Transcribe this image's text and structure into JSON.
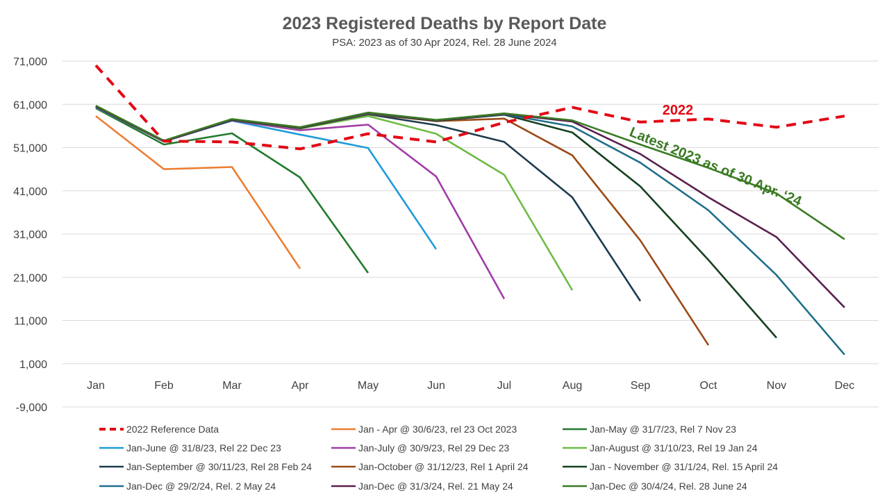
{
  "chart_data": {
    "type": "line",
    "title": "2023 Registered Deaths by Report Date",
    "subtitle": "PSA: 2023 as of 30 Apr 2024, Rel. 28 June 2024",
    "xlabel": "",
    "ylabel": "",
    "categories": [
      "Jan",
      "Feb",
      "Mar",
      "Apr",
      "May",
      "Jun",
      "Jul",
      "Aug",
      "Sep",
      "Oct",
      "Nov",
      "Dec"
    ],
    "ylim": [
      -9000,
      71000
    ],
    "yticks": [
      71000,
      61000,
      51000,
      41000,
      31000,
      21000,
      11000,
      1000,
      -9000
    ],
    "ytick_labels": [
      "71,000",
      "61,000",
      "51,000",
      "41,000",
      "31,000",
      "21,000",
      "11,000",
      "1,000",
      "-9,000"
    ],
    "grid": true,
    "legend_position": "bottom",
    "series": [
      {
        "name": "2022 Reference Data",
        "color": "#e30613",
        "dashed": true,
        "values": [
          70000,
          52500,
          52300,
          50700,
          54200,
          52300,
          56800,
          60300,
          56900,
          57600,
          55700,
          58300
        ]
      },
      {
        "name": "Jan - Apr @ 30/6/23, rel 23 Oct 2023",
        "color": "#ed7d31",
        "values": [
          58300,
          46000,
          46500,
          23000,
          null,
          null,
          null,
          null,
          null,
          null,
          null,
          null
        ]
      },
      {
        "name": "Jan-May @ 31/7/23, Rel 7 Nov 23",
        "color": "#217a2c",
        "values": [
          60100,
          51700,
          54300,
          44100,
          22000,
          null,
          null,
          null,
          null,
          null,
          null,
          null
        ]
      },
      {
        "name": "Jan-June @ 31/8/23, Rel 22 Dec 23",
        "color": "#1f9bd7",
        "values": [
          60300,
          52400,
          57200,
          54000,
          50900,
          27500,
          null,
          null,
          null,
          null,
          null,
          null
        ]
      },
      {
        "name": "Jan-July @ 30/9/23, Rel 29 Dec 23",
        "color": "#a03ca8",
        "values": [
          60400,
          52400,
          57300,
          55000,
          56300,
          44300,
          16000,
          null,
          null,
          null,
          null,
          null
        ]
      },
      {
        "name": "Jan-August @ 31/10/23, Rel 19 Jan 24",
        "color": "#6dbb45",
        "values": [
          60500,
          52500,
          57400,
          55400,
          58300,
          54200,
          44700,
          18000,
          null,
          null,
          null,
          null
        ]
      },
      {
        "name": "Jan-September @ 30/11/23, Rel 28 Feb 24",
        "color": "#1c3a4d",
        "values": [
          60500,
          52500,
          57400,
          55500,
          58700,
          56200,
          52300,
          39500,
          15500,
          null,
          null,
          null
        ]
      },
      {
        "name": "Jan-October @ 31/12/23, Rel 1 April 24",
        "color": "#9c4a16",
        "values": [
          60500,
          52500,
          57400,
          55500,
          58800,
          57100,
          57700,
          49200,
          29500,
          5300,
          null,
          null
        ]
      },
      {
        "name": "Jan - November @ 31/1/24, Rel. 15 April 24",
        "color": "#14401f",
        "values": [
          60500,
          52500,
          57400,
          55500,
          58900,
          57200,
          58600,
          54500,
          42000,
          25000,
          7000,
          null
        ]
      },
      {
        "name": "Jan-Dec @ 29/2/24, Rel. 2 May 24",
        "color": "#1f6f8b",
        "values": [
          60600,
          52500,
          57500,
          55600,
          58900,
          57300,
          58700,
          55900,
          47500,
          36500,
          21500,
          3100
        ]
      },
      {
        "name": "Jan-Dec @ 31/3/24, Rel. 21 May 24",
        "color": "#5a1f4f",
        "values": [
          60600,
          52500,
          57500,
          55600,
          59000,
          57300,
          58800,
          57000,
          49500,
          39500,
          30300,
          14000
        ]
      },
      {
        "name": "Jan-Dec @ 30/4/24, Rel. 28 June 24",
        "color": "#3a7a23",
        "values": [
          60700,
          52600,
          57600,
          55700,
          59100,
          57400,
          58900,
          57300,
          51700,
          46300,
          40400,
          29800
        ]
      }
    ],
    "annotations": [
      {
        "text": "2022",
        "color": "#e30613"
      },
      {
        "text": "Latest 2023 as of 30 Apr. ‘24",
        "color": "#3a7a23"
      }
    ]
  }
}
